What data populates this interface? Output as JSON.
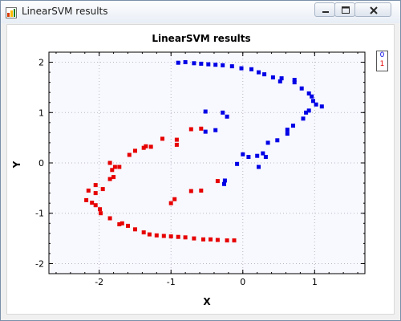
{
  "window": {
    "title": "LinearSVM results",
    "controls": {
      "minimize": "minimize",
      "maximize": "maximize",
      "close": "close"
    }
  },
  "chart_data": {
    "type": "scatter",
    "title": "LinearSVM results",
    "xlabel": "X",
    "ylabel": "Y",
    "xlim": [
      -2.7,
      1.7
    ],
    "ylim": [
      -2.2,
      2.2
    ],
    "xticks": [
      "-2",
      "-1",
      "0",
      "1"
    ],
    "yticks": [
      "2",
      "1",
      "0",
      "-1",
      "-2"
    ],
    "grid": true,
    "legend": {
      "placement": "top-right",
      "entries": [
        "0",
        "1"
      ]
    },
    "series": [
      {
        "name": "0",
        "color": "#0000e6",
        "points": [
          [
            -0.9,
            1.99
          ],
          [
            -0.8,
            2.0
          ],
          [
            -0.68,
            1.98
          ],
          [
            -0.58,
            1.97
          ],
          [
            -0.48,
            1.96
          ],
          [
            -0.38,
            1.95
          ],
          [
            -0.28,
            1.94
          ],
          [
            -0.15,
            1.92
          ],
          [
            -0.02,
            1.88
          ],
          [
            0.12,
            1.86
          ],
          [
            0.22,
            1.8
          ],
          [
            0.3,
            1.76
          ],
          [
            0.42,
            1.7
          ],
          [
            0.52,
            1.62
          ],
          [
            0.54,
            1.68
          ],
          [
            0.72,
            1.65
          ],
          [
            0.72,
            1.6
          ],
          [
            0.82,
            1.48
          ],
          [
            0.92,
            1.38
          ],
          [
            0.96,
            1.32
          ],
          [
            0.98,
            1.23
          ],
          [
            1.02,
            1.16
          ],
          [
            1.1,
            1.12
          ],
          [
            0.92,
            1.04
          ],
          [
            0.88,
            1.0
          ],
          [
            0.84,
            0.88
          ],
          [
            0.7,
            0.74
          ],
          [
            0.62,
            0.66
          ],
          [
            0.62,
            0.58
          ],
          [
            0.48,
            0.45
          ],
          [
            0.35,
            0.4
          ],
          [
            0.28,
            0.19
          ],
          [
            0.32,
            0.12
          ],
          [
            0.2,
            0.14
          ],
          [
            0.08,
            0.12
          ],
          [
            0.0,
            0.17
          ],
          [
            0.22,
            -0.08
          ],
          [
            -0.08,
            -0.02
          ],
          [
            -0.25,
            -0.35
          ],
          [
            -0.26,
            -0.42
          ],
          [
            -0.52,
            1.02
          ],
          [
            -0.52,
            0.62
          ],
          [
            -0.38,
            0.65
          ],
          [
            -0.28,
            1.0
          ],
          [
            -0.22,
            0.92
          ]
        ]
      },
      {
        "name": "1",
        "color": "#e60000",
        "points": [
          [
            -0.12,
            -1.54
          ],
          [
            -0.22,
            -1.54
          ],
          [
            -0.35,
            -1.53
          ],
          [
            -0.45,
            -1.52
          ],
          [
            -0.55,
            -1.52
          ],
          [
            -0.68,
            -1.5
          ],
          [
            -0.8,
            -1.48
          ],
          [
            -0.9,
            -1.47
          ],
          [
            -1.0,
            -1.46
          ],
          [
            -1.1,
            -1.45
          ],
          [
            -1.2,
            -1.44
          ],
          [
            -1.3,
            -1.42
          ],
          [
            -1.38,
            -1.38
          ],
          [
            -1.5,
            -1.32
          ],
          [
            -1.6,
            -1.25
          ],
          [
            -1.68,
            -1.2
          ],
          [
            -1.72,
            -1.22
          ],
          [
            -1.85,
            -1.1
          ],
          [
            -1.98,
            -1.0
          ],
          [
            -1.99,
            -0.92
          ],
          [
            -2.05,
            -0.84
          ],
          [
            -2.1,
            -0.79
          ],
          [
            -2.18,
            -0.74
          ],
          [
            -2.05,
            -0.6
          ],
          [
            -2.15,
            -0.55
          ],
          [
            -1.95,
            -0.52
          ],
          [
            -2.05,
            -0.44
          ],
          [
            -1.85,
            -0.32
          ],
          [
            -1.8,
            -0.28
          ],
          [
            -1.82,
            -0.14
          ],
          [
            -1.85,
            0.0
          ],
          [
            -1.78,
            -0.08
          ],
          [
            -1.72,
            -0.08
          ],
          [
            -1.58,
            0.16
          ],
          [
            -1.5,
            0.24
          ],
          [
            -1.38,
            0.3
          ],
          [
            -1.35,
            0.33
          ],
          [
            -1.28,
            0.32
          ],
          [
            -1.12,
            0.48
          ],
          [
            -0.92,
            0.46
          ],
          [
            -0.92,
            0.36
          ],
          [
            -0.72,
            0.67
          ],
          [
            -0.58,
            0.68
          ],
          [
            -0.35,
            -0.36
          ],
          [
            -0.72,
            -0.56
          ],
          [
            -0.58,
            -0.55
          ],
          [
            -0.95,
            -0.72
          ],
          [
            -1.0,
            -0.8
          ]
        ]
      }
    ]
  }
}
